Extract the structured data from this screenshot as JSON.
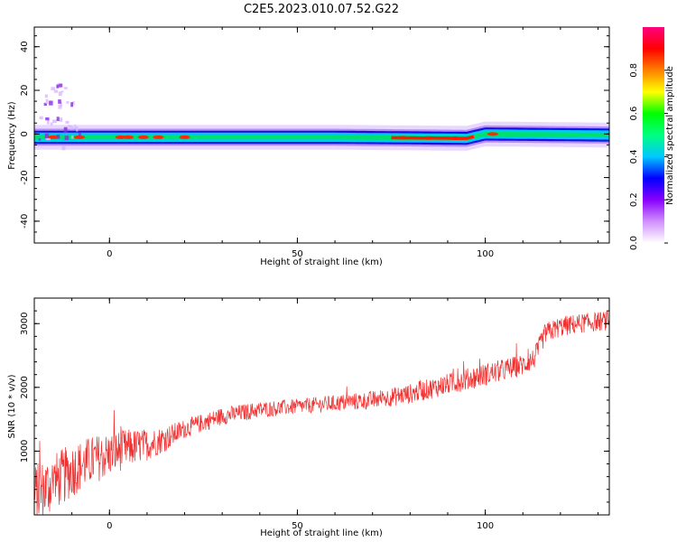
{
  "title": "C2E5.2023.010.07.52.G22",
  "chart_data": [
    {
      "type": "heatmap",
      "xlabel": "Height of straight line (km)",
      "ylabel": "Frequency (Hz)",
      "xlim": [
        -20,
        133
      ],
      "ylim": [
        -50,
        49
      ],
      "x_ticks": [
        0,
        50,
        100
      ],
      "y_ticks": [
        40,
        20,
        0,
        -20,
        -40
      ],
      "colorbar": {
        "label": "Normalized spectral amplitude",
        "range": [
          0,
          1
        ],
        "ticks": [
          "0.0",
          "0.2",
          "0.4",
          "0.6",
          "0.8"
        ],
        "colors": [
          "#ffffff",
          "#d090ff",
          "#8800ff",
          "#0000ff",
          "#00c8ff",
          "#00ff80",
          "#00ff00",
          "#ffff00",
          "#ff8000",
          "#ff0000",
          "#ff0080"
        ]
      },
      "signal_band": {
        "center_hz": [
          [
            -20,
            -1.5
          ],
          [
            60,
            -1.5
          ],
          [
            95,
            -2.0
          ],
          [
            100,
            0.0
          ],
          [
            133,
            -0.5
          ]
        ],
        "half_width_hz": 3,
        "peak_heights_km": [
          -15,
          -8,
          3,
          5,
          9,
          13,
          20,
          78,
          85,
          92,
          102
        ]
      },
      "grid": false
    },
    {
      "type": "line",
      "xlabel": "Height of straight line (km)",
      "ylabel": "SNR (10 * v/v)",
      "xlim": [
        -20,
        133
      ],
      "ylim": [
        0,
        3400
      ],
      "x_ticks": [
        0,
        50,
        100
      ],
      "y_ticks": [
        1000,
        2000,
        3000
      ],
      "series": [
        {
          "color": "#f03030",
          "trend": {
            "x": [
              -20,
              -15,
              -10,
              -5,
              0,
              5,
              10,
              15,
              20,
              25,
              30,
              40,
              50,
              60,
              70,
              80,
              90,
              100,
              110,
              113,
              116,
              120,
              125,
              133
            ],
            "y": [
              300,
              500,
              700,
              850,
              950,
              1050,
              1100,
              1200,
              1350,
              1450,
              1550,
              1650,
              1700,
              1750,
              1800,
              1900,
              2050,
              2200,
              2350,
              2450,
              2850,
              2950,
              3000,
              3050
            ]
          },
          "noise_amplitude": {
            "x": [
              -20,
              0,
              10,
              20,
              50,
              100,
              133
            ],
            "y": [
              500,
              350,
              250,
              150,
              120,
              180,
              150
            ]
          }
        }
      ],
      "grid": false
    }
  ]
}
